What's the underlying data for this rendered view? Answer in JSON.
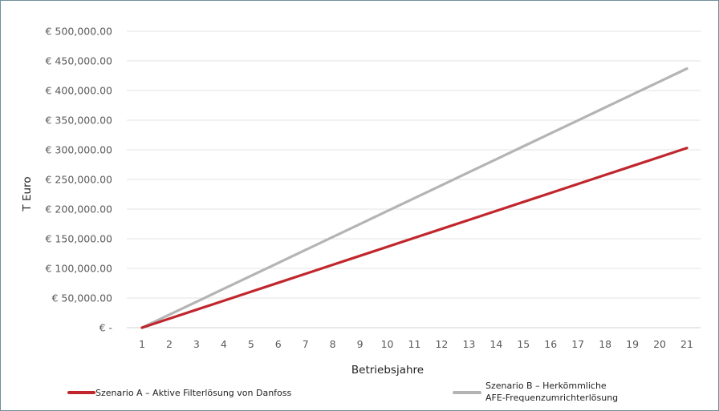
{
  "chart_data": {
    "type": "line",
    "xlabel": "Betriebsjahre",
    "ylabel": "T Euro",
    "x": [
      1,
      2,
      3,
      4,
      5,
      6,
      7,
      8,
      9,
      10,
      11,
      12,
      13,
      14,
      15,
      16,
      17,
      18,
      19,
      20,
      21
    ],
    "ylim": [
      0,
      500000
    ],
    "y_tick_labels": [
      "€ -",
      "€ 50,000.00",
      "€ 100,000.00",
      "€ 150,000.00",
      "€ 200,000.00",
      "€ 250,000.00",
      "€ 300,000.00",
      "€ 350,000.00",
      "€ 400,000.00",
      "€ 450,000.00",
      "€ 500,000.00"
    ],
    "y_tick_values": [
      0,
      50000,
      100000,
      150000,
      200000,
      250000,
      300000,
      350000,
      400000,
      450000,
      500000
    ],
    "grid": "horizontal",
    "legend_position": "bottom",
    "series": [
      {
        "name": "Szenario A – Aktive Filterlösung von Danfoss",
        "name_lines": [
          "Szenario A – Aktive Filterlösung von Danfoss"
        ],
        "color": "#c0262c",
        "values": [
          0,
          15150,
          30300,
          45450,
          60600,
          75750,
          90900,
          106050,
          121200,
          136350,
          151500,
          166650,
          181800,
          196950,
          212100,
          227250,
          242400,
          257550,
          272700,
          287850,
          303000
        ]
      },
      {
        "name": "Szenario B – Herkömmliche AFE-Frequenzumrichterlösung",
        "name_lines": [
          "Szenario B – Herkömmliche",
          "AFE-Frequenzumrichterlösung"
        ],
        "color": "#b4b4b4",
        "values": [
          0,
          21850,
          43700,
          65550,
          87400,
          109250,
          131100,
          152950,
          174800,
          196650,
          218500,
          240350,
          262200,
          284050,
          305900,
          327750,
          349600,
          371450,
          393300,
          415150,
          437000
        ]
      }
    ]
  }
}
